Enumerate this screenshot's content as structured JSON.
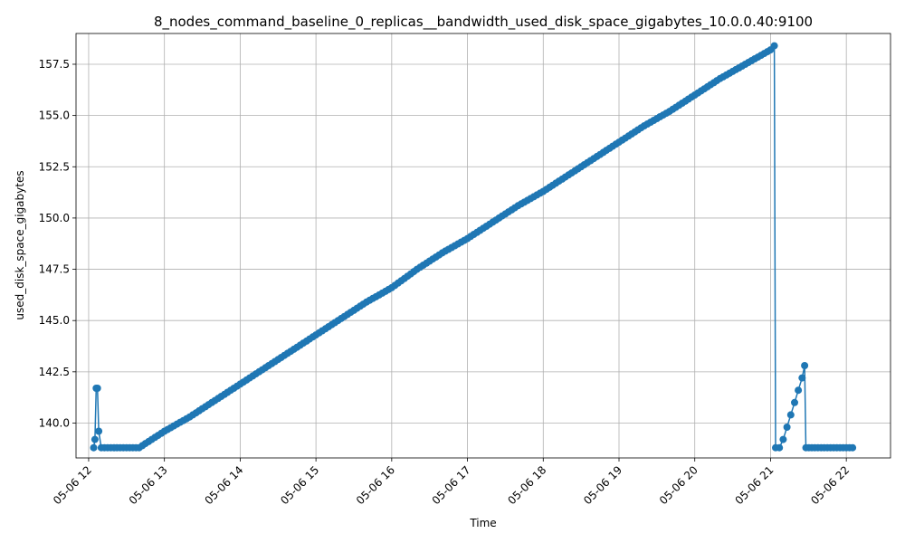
{
  "chart_data": {
    "type": "line",
    "title": "8_nodes_command_baseline_0_replicas__bandwidth_used_disk_space_gigabytes_10.0.0.40:9100",
    "xlabel": "Time",
    "ylabel": "used_disk_space_gigabytes",
    "x_is_time": true,
    "xlim": [
      "05-06 11:50",
      "05-06 22:35"
    ],
    "ylim": [
      138.3,
      159.0
    ],
    "x_ticks": [
      "05-06 12",
      "05-06 13",
      "05-06 14",
      "05-06 15",
      "05-06 16",
      "05-06 17",
      "05-06 18",
      "05-06 19",
      "05-06 20",
      "05-06 21",
      "05-06 22"
    ],
    "y_ticks": [
      140.0,
      142.5,
      145.0,
      147.5,
      150.0,
      152.5,
      155.0,
      157.5
    ],
    "grid": true,
    "marker": "circle",
    "color": "#1f77b4",
    "series": [
      {
        "name": "",
        "points": [
          [
            "05-06 12:04",
            138.8
          ],
          [
            "05-06 12:05",
            139.2
          ],
          [
            "05-06 12:06",
            141.7
          ],
          [
            "05-06 12:07",
            141.7
          ],
          [
            "05-06 12:08",
            139.6
          ],
          [
            "05-06 12:10",
            138.8
          ],
          [
            "05-06 12:15",
            138.8
          ],
          [
            "05-06 12:20",
            138.8
          ],
          [
            "05-06 12:25",
            138.8
          ],
          [
            "05-06 12:30",
            138.8
          ],
          [
            "05-06 12:35",
            138.8
          ],
          [
            "05-06 12:40",
            138.8
          ],
          [
            "05-06 12:45",
            139.0
          ],
          [
            "05-06 12:50",
            139.2
          ],
          [
            "05-06 13:00",
            139.6
          ],
          [
            "05-06 13:20",
            140.3
          ],
          [
            "05-06 13:40",
            141.1
          ],
          [
            "05-06 14:00",
            141.9
          ],
          [
            "05-06 14:20",
            142.7
          ],
          [
            "05-06 14:40",
            143.5
          ],
          [
            "05-06 15:00",
            144.3
          ],
          [
            "05-06 15:20",
            145.1
          ],
          [
            "05-06 15:40",
            145.9
          ],
          [
            "05-06 16:00",
            146.6
          ],
          [
            "05-06 16:20",
            147.5
          ],
          [
            "05-06 16:40",
            148.3
          ],
          [
            "05-06 17:00",
            149.0
          ],
          [
            "05-06 17:20",
            149.8
          ],
          [
            "05-06 17:40",
            150.6
          ],
          [
            "05-06 18:00",
            151.3
          ],
          [
            "05-06 18:20",
            152.1
          ],
          [
            "05-06 18:40",
            152.9
          ],
          [
            "05-06 19:00",
            153.7
          ],
          [
            "05-06 19:20",
            154.5
          ],
          [
            "05-06 19:40",
            155.2
          ],
          [
            "05-06 20:00",
            156.0
          ],
          [
            "05-06 20:20",
            156.8
          ],
          [
            "05-06 20:40",
            157.5
          ],
          [
            "05-06 21:00",
            158.2
          ],
          [
            "05-06 21:03",
            158.4
          ],
          [
            "05-06 21:04",
            138.8
          ],
          [
            "05-06 21:07",
            138.8
          ],
          [
            "05-06 21:10",
            139.2
          ],
          [
            "05-06 21:13",
            139.8
          ],
          [
            "05-06 21:16",
            140.4
          ],
          [
            "05-06 21:19",
            141.0
          ],
          [
            "05-06 21:22",
            141.6
          ],
          [
            "05-06 21:25",
            142.2
          ],
          [
            "05-06 21:27",
            142.8
          ],
          [
            "05-06 21:28",
            138.8
          ],
          [
            "05-06 21:35",
            138.8
          ],
          [
            "05-06 21:45",
            138.8
          ],
          [
            "05-06 21:55",
            138.8
          ],
          [
            "05-06 22:00",
            138.8
          ],
          [
            "05-06 22:05",
            138.8
          ]
        ]
      }
    ]
  }
}
